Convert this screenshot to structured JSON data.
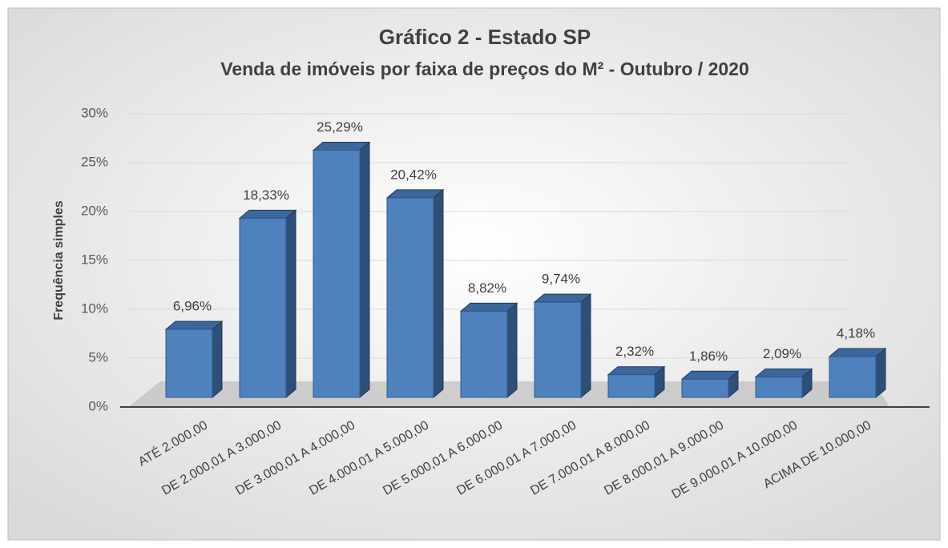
{
  "chart_data": {
    "type": "bar3d",
    "title": "Gráfico 2 - Estado SP",
    "subtitle": "Venda de imóveis por faixa de preços do M²  - Outubro / 2020",
    "y_label": "Frequência simples",
    "categories": [
      "ATÉ 2.000,00",
      "DE 2.000,01 A 3.000,00",
      "DE 3.000,01 A 4.000,00",
      "DE 4.000,01 A 5.000,00",
      "DE 5.000,01 A 6.000,00",
      "DE 6.000,01 A 7.000,00",
      "DE 7.000,01 A 8.000,00",
      "DE 8.000,01 A 9.000,00",
      "DE 9.000,01 A 10.000,00",
      "ACIMA DE 10.000,00"
    ],
    "values": [
      6.96,
      18.33,
      25.29,
      20.42,
      8.82,
      9.74,
      2.32,
      1.86,
      2.09,
      4.18
    ],
    "value_labels": [
      "6,96%",
      "18,33%",
      "25,29%",
      "20,42%",
      "8,82%",
      "9,74%",
      "2,32%",
      "1,86%",
      "2,09%",
      "4,18%"
    ],
    "color": "#4f81bd",
    "ylim": [
      0,
      30
    ],
    "yticks": [
      {
        "value": 0,
        "label": "0%"
      },
      {
        "value": 5,
        "label": "5%"
      },
      {
        "value": 10,
        "label": "10%"
      },
      {
        "value": 15,
        "label": "15%"
      },
      {
        "value": 20,
        "label": "20%"
      },
      {
        "value": 25,
        "label": "25%"
      },
      {
        "value": 30,
        "label": "30%"
      }
    ],
    "grid": true
  }
}
